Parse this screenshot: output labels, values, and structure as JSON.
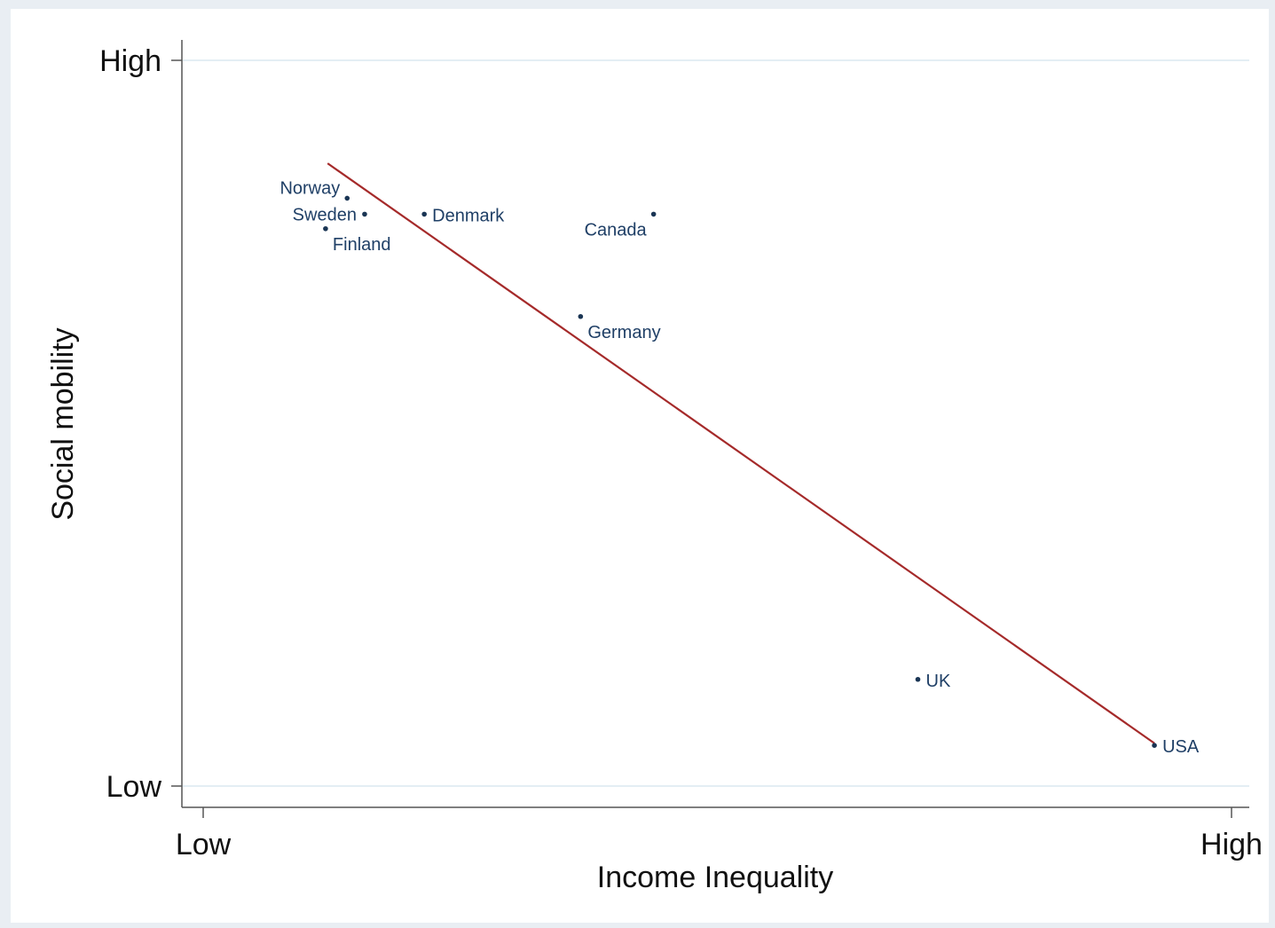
{
  "chart_data": {
    "type": "scatter",
    "title": "",
    "xlabel": "Income Inequality",
    "ylabel": "Social mobility",
    "xlim": [
      0,
      1
    ],
    "ylim": [
      0,
      1
    ],
    "x_ticks": [
      {
        "value": 0,
        "label": "Low"
      },
      {
        "value": 1,
        "label": "High"
      }
    ],
    "y_ticks": [
      {
        "value": 0,
        "label": "Low"
      },
      {
        "value": 1,
        "label": "High"
      }
    ],
    "grid": "horizontal at y ticks",
    "legend": "none",
    "points": [
      {
        "label": "Norway",
        "x": 0.14,
        "y": 0.81,
        "label_pos": "upper-left"
      },
      {
        "label": "Sweden",
        "x": 0.157,
        "y": 0.788,
        "label_pos": "left"
      },
      {
        "label": "Finland",
        "x": 0.119,
        "y": 0.768,
        "label_pos": "lower-right"
      },
      {
        "label": "Denmark",
        "x": 0.215,
        "y": 0.788,
        "label_pos": "right"
      },
      {
        "label": "Canada",
        "x": 0.438,
        "y": 0.788,
        "label_pos": "lower-left"
      },
      {
        "label": "Germany",
        "x": 0.367,
        "y": 0.647,
        "label_pos": "lower-right"
      },
      {
        "label": "UK",
        "x": 0.695,
        "y": 0.147,
        "label_pos": "right"
      },
      {
        "label": "USA",
        "x": 0.925,
        "y": 0.056,
        "label_pos": "right"
      }
    ],
    "fit_line": {
      "x": [
        0.121,
        0.925
      ],
      "y": [
        0.858,
        0.059
      ],
      "color": "#a52a2a"
    },
    "colors": {
      "outer_background": "#e9eef3",
      "plot_background": "#ffffff",
      "marker": "#1a3554",
      "point_label": "#1f3f66",
      "grid": "#e4eef4"
    }
  }
}
